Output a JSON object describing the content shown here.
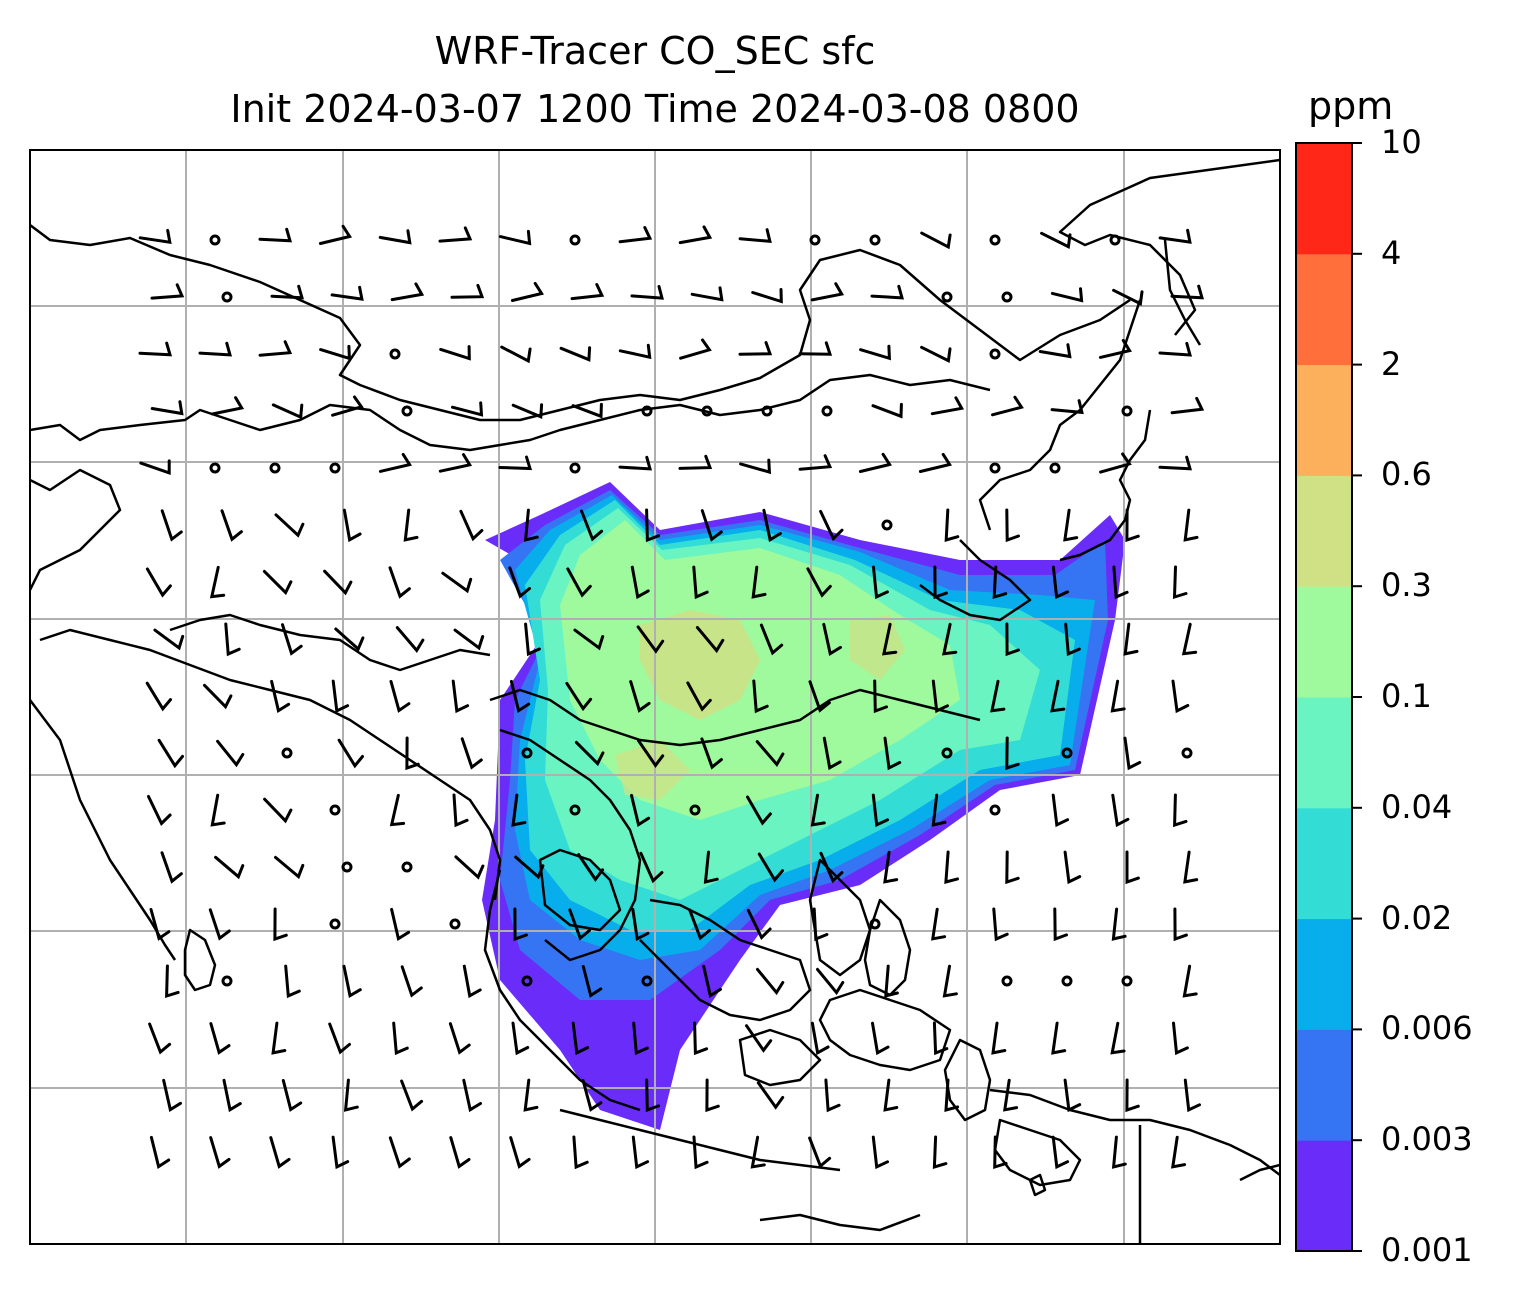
{
  "figure": {
    "title_line1": "WRF-Tracer CO_SEC sfc",
    "title_line2": "Init 2024-03-07 1200 Time 2024-03-08 0800"
  },
  "colorbar": {
    "unit": "ppm",
    "levels": [
      "0.001",
      "0.003",
      "0.006",
      "0.02",
      "0.04",
      "0.1",
      "0.3",
      "0.6",
      "2",
      "4",
      "10"
    ],
    "colors": [
      "#6a2cf9",
      "#3574f2",
      "#08aeeb",
      "#33ddd6",
      "#6af4c1",
      "#9ff99d",
      "#cfe085",
      "#fcb05c",
      "#ff6f3b",
      "#ff2818"
    ]
  },
  "map": {
    "gridline_color": "#b0b0b0",
    "coastline_color": "#000000",
    "wind_barbs": "black barbs, calm winds drawn as small circles"
  }
}
